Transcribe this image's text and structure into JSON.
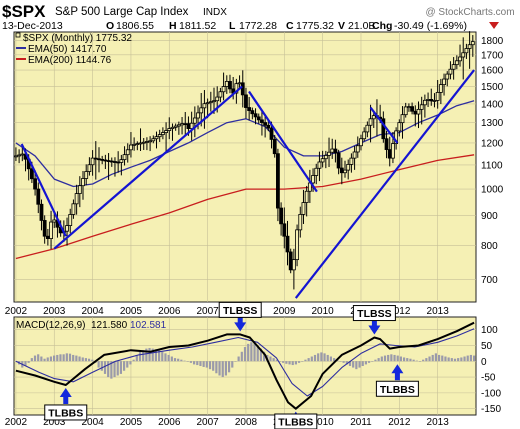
{
  "header": {
    "symbol": "$SPX",
    "name": "S&P 500 Large Cap Index",
    "exchange": "INDX",
    "date": "13-Dec-2013",
    "open_label": "O",
    "open": "1806.55",
    "high_label": "H",
    "high": "1811.52",
    "low_label": "L",
    "low": "1772.28",
    "close_label": "C",
    "close": "1775.32",
    "volume_label": "V",
    "volume": "21.0B",
    "change_label": "Chg",
    "change": "-30.49 (-1.69%)",
    "watermark": "@ StockCharts.com"
  },
  "legend": {
    "price": "$SPX (Monthly) 1775.32",
    "ema50": "EMA(50) 1417.70",
    "ema200": "EMA(200) 1144.76"
  },
  "macd_legend": {
    "label": "MACD(12,26,9)",
    "macd_value": "121.580",
    "signal_value": "102.581"
  },
  "colors": {
    "panel_bg": "#f5f0b4",
    "grid": "#c6c098",
    "candle": "#000000",
    "ema50": "#2e2ea0",
    "ema200": "#c81e1e",
    "trendline": "#1414d2",
    "histogram": "#9a9aaa",
    "callout_bg": "#ffffff",
    "arrow": "#1428dc",
    "change_text": "#c81e1e"
  },
  "chart_data": [
    {
      "type": "candlestick",
      "title": "$SPX (Monthly)",
      "x_ticks": [
        "2002",
        "2003",
        "2004",
        "2005",
        "2006",
        "2007",
        "2008",
        "2009",
        "2010",
        "2011",
        "2012",
        "2013"
      ],
      "y_ticks": [
        700,
        800,
        900,
        1000,
        1100,
        1200,
        1300,
        1400,
        1500,
        1600,
        1700,
        1800
      ],
      "y_scale": "log",
      "y_range": [
        640,
        1860
      ],
      "x_range": [
        2001.95,
        2014.0
      ],
      "grid": true,
      "legend_position": "top-left",
      "price_path": [
        [
          2002.0,
          1140
        ],
        [
          2002.2,
          1150
        ],
        [
          2002.5,
          1000
        ],
        [
          2002.7,
          860
        ],
        [
          2002.8,
          800
        ],
        [
          2002.95,
          900
        ],
        [
          2003.15,
          840
        ],
        [
          2003.3,
          850
        ],
        [
          2003.6,
          990
        ],
        [
          2004.0,
          1130
        ],
        [
          2004.3,
          1120
        ],
        [
          2004.7,
          1110
        ],
        [
          2005.0,
          1190
        ],
        [
          2005.5,
          1210
        ],
        [
          2006.0,
          1270
        ],
        [
          2006.4,
          1300
        ],
        [
          2006.5,
          1270
        ],
        [
          2006.9,
          1400
        ],
        [
          2007.2,
          1420
        ],
        [
          2007.5,
          1530
        ],
        [
          2007.65,
          1450
        ],
        [
          2007.8,
          1550
        ],
        [
          2008.0,
          1380
        ],
        [
          2008.3,
          1320
        ],
        [
          2008.6,
          1270
        ],
        [
          2008.75,
          1150
        ],
        [
          2008.83,
          930
        ],
        [
          2008.9,
          880
        ],
        [
          2009.0,
          830
        ],
        [
          2009.15,
          740
        ],
        [
          2009.2,
          700
        ],
        [
          2009.35,
          870
        ],
        [
          2009.6,
          1000
        ],
        [
          2009.9,
          1110
        ],
        [
          2010.3,
          1180
        ],
        [
          2010.45,
          1060
        ],
        [
          2010.6,
          1080
        ],
        [
          2010.9,
          1180
        ],
        [
          2011.3,
          1340
        ],
        [
          2011.5,
          1320
        ],
        [
          2011.6,
          1200
        ],
        [
          2011.75,
          1130
        ],
        [
          2011.9,
          1250
        ],
        [
          2012.2,
          1400
        ],
        [
          2012.4,
          1340
        ],
        [
          2012.7,
          1430
        ],
        [
          2012.9,
          1410
        ],
        [
          2013.1,
          1520
        ],
        [
          2013.4,
          1630
        ],
        [
          2013.6,
          1690
        ],
        [
          2013.8,
          1760
        ],
        [
          2013.95,
          1800
        ]
      ],
      "series": [
        {
          "name": "EMA(50)",
          "points": [
            [
              2002.0,
              1200
            ],
            [
              2002.5,
              1140
            ],
            [
              2003.0,
              1040
            ],
            [
              2003.5,
              1010
            ],
            [
              2004.0,
              1020
            ],
            [
              2004.5,
              1060
            ],
            [
              2005.0,
              1090
            ],
            [
              2005.5,
              1120
            ],
            [
              2006.0,
              1160
            ],
            [
              2006.5,
              1200
            ],
            [
              2007.0,
              1250
            ],
            [
              2007.5,
              1300
            ],
            [
              2008.0,
              1320
            ],
            [
              2008.5,
              1280
            ],
            [
              2009.0,
              1180
            ],
            [
              2009.5,
              1140
            ],
            [
              2010.0,
              1140
            ],
            [
              2010.5,
              1160
            ],
            [
              2011.0,
              1200
            ],
            [
              2011.5,
              1240
            ],
            [
              2012.0,
              1250
            ],
            [
              2012.5,
              1300
            ],
            [
              2013.0,
              1340
            ],
            [
              2013.5,
              1390
            ],
            [
              2013.95,
              1418
            ]
          ]
        },
        {
          "name": "EMA(200)",
          "points": [
            [
              2002.0,
              760
            ],
            [
              2003.0,
              790
            ],
            [
              2004.0,
              830
            ],
            [
              2005.0,
              870
            ],
            [
              2006.0,
              910
            ],
            [
              2007.0,
              960
            ],
            [
              2008.0,
              1000
            ],
            [
              2009.0,
              1000
            ],
            [
              2010.0,
              1010
            ],
            [
              2011.0,
              1040
            ],
            [
              2012.0,
              1080
            ],
            [
              2013.0,
              1120
            ],
            [
              2013.95,
              1145
            ]
          ]
        }
      ],
      "trendlines": [
        {
          "from": [
            2002.15,
            1195
          ],
          "to": [
            2003.3,
            830
          ]
        },
        {
          "from": [
            2003.0,
            790
          ],
          "to": [
            2007.9,
            1500
          ]
        },
        {
          "from": [
            2008.08,
            1470
          ],
          "to": [
            2009.85,
            990
          ]
        },
        {
          "from": [
            2009.3,
            650
          ],
          "to": [
            2013.95,
            1600
          ]
        },
        {
          "from": [
            2011.25,
            1380
          ],
          "to": [
            2011.95,
            1200
          ]
        }
      ]
    },
    {
      "type": "line",
      "title": "MACD(12,26,9)",
      "y_ticks": [
        100,
        50,
        0,
        -50,
        -100,
        -150
      ],
      "y_range": [
        -170,
        140
      ],
      "x_range": [
        2001.95,
        2014.0
      ],
      "grid": true,
      "series": [
        {
          "name": "MACD",
          "points": [
            [
              2002.0,
              -30
            ],
            [
              2002.5,
              -45
            ],
            [
              2003.0,
              -65
            ],
            [
              2003.3,
              -75
            ],
            [
              2003.8,
              -25
            ],
            [
              2004.3,
              20
            ],
            [
              2005.0,
              35
            ],
            [
              2005.5,
              30
            ],
            [
              2006.0,
              45
            ],
            [
              2006.5,
              50
            ],
            [
              2007.0,
              65
            ],
            [
              2007.5,
              85
            ],
            [
              2007.85,
              85
            ],
            [
              2008.1,
              75
            ],
            [
              2008.5,
              20
            ],
            [
              2008.8,
              -60
            ],
            [
              2009.1,
              -130
            ],
            [
              2009.3,
              -150
            ],
            [
              2009.7,
              -110
            ],
            [
              2010.0,
              -40
            ],
            [
              2010.5,
              20
            ],
            [
              2011.0,
              50
            ],
            [
              2011.35,
              75
            ],
            [
              2011.5,
              70
            ],
            [
              2011.75,
              40
            ],
            [
              2012.0,
              45
            ],
            [
              2012.5,
              50
            ],
            [
              2013.0,
              70
            ],
            [
              2013.5,
              95
            ],
            [
              2013.95,
              122
            ]
          ]
        },
        {
          "name": "Signal",
          "points": [
            [
              2002.0,
              0
            ],
            [
              2002.6,
              -35
            ],
            [
              2003.0,
              -55
            ],
            [
              2003.5,
              -65
            ],
            [
              2004.0,
              -35
            ],
            [
              2004.6,
              0
            ],
            [
              2005.2,
              20
            ],
            [
              2006.0,
              35
            ],
            [
              2006.6,
              45
            ],
            [
              2007.2,
              60
            ],
            [
              2007.8,
              75
            ],
            [
              2008.3,
              60
            ],
            [
              2008.8,
              10
            ],
            [
              2009.2,
              -70
            ],
            [
              2009.6,
              -110
            ],
            [
              2010.0,
              -80
            ],
            [
              2010.5,
              -20
            ],
            [
              2011.0,
              25
            ],
            [
              2011.5,
              55
            ],
            [
              2011.9,
              50
            ],
            [
              2012.4,
              45
            ],
            [
              2013.0,
              60
            ],
            [
              2013.5,
              80
            ],
            [
              2013.95,
              103
            ]
          ]
        }
      ],
      "histogram": [
        0,
        -10,
        -20,
        -15,
        -5,
        10,
        18,
        22,
        15,
        8,
        12,
        15,
        18,
        20,
        22,
        22,
        25,
        24,
        20,
        18,
        15,
        12,
        10,
        8,
        5,
        -5,
        -20,
        -30,
        -40,
        -50,
        -55,
        -50,
        -45,
        -40,
        -30,
        -20,
        -10,
        5,
        20,
        30,
        35,
        40,
        42,
        40,
        38,
        35,
        30,
        25,
        20,
        15,
        10,
        8,
        5,
        2,
        0,
        -5,
        -10,
        -12,
        -15,
        -18,
        -20,
        -25,
        -30,
        -38,
        -45,
        -50,
        -45,
        -35,
        -20,
        0,
        15,
        30,
        45,
        55,
        60,
        58,
        50,
        40,
        30,
        20,
        15,
        10,
        5,
        0,
        -5,
        -8,
        -10,
        -12,
        -10,
        -5,
        0,
        5,
        10,
        15,
        20,
        25,
        28,
        25,
        20,
        15,
        10,
        5,
        0,
        -5,
        -10,
        -15,
        -20,
        -25,
        -20,
        -15,
        -10,
        -5,
        0,
        5,
        10,
        15,
        18,
        20,
        22,
        20,
        18,
        15,
        12,
        10,
        8,
        5,
        2,
        0,
        5,
        10,
        15,
        20,
        25,
        20,
        18,
        15,
        12,
        10,
        8,
        10,
        12,
        15,
        18,
        20,
        18
      ],
      "annotations": [
        {
          "label": "TLBBS",
          "at": [
            2003.3,
            -75
          ],
          "side": "below"
        },
        {
          "label": "TLBSS",
          "at": [
            2007.85,
            85
          ],
          "side": "above"
        },
        {
          "label": "TLBBS",
          "at": [
            2009.3,
            -150
          ],
          "side": "below"
        },
        {
          "label": "TLBSS",
          "at": [
            2011.35,
            75
          ],
          "side": "above"
        },
        {
          "label": "TLBBS",
          "at": [
            2011.95,
            0
          ],
          "side": "below"
        }
      ]
    }
  ]
}
